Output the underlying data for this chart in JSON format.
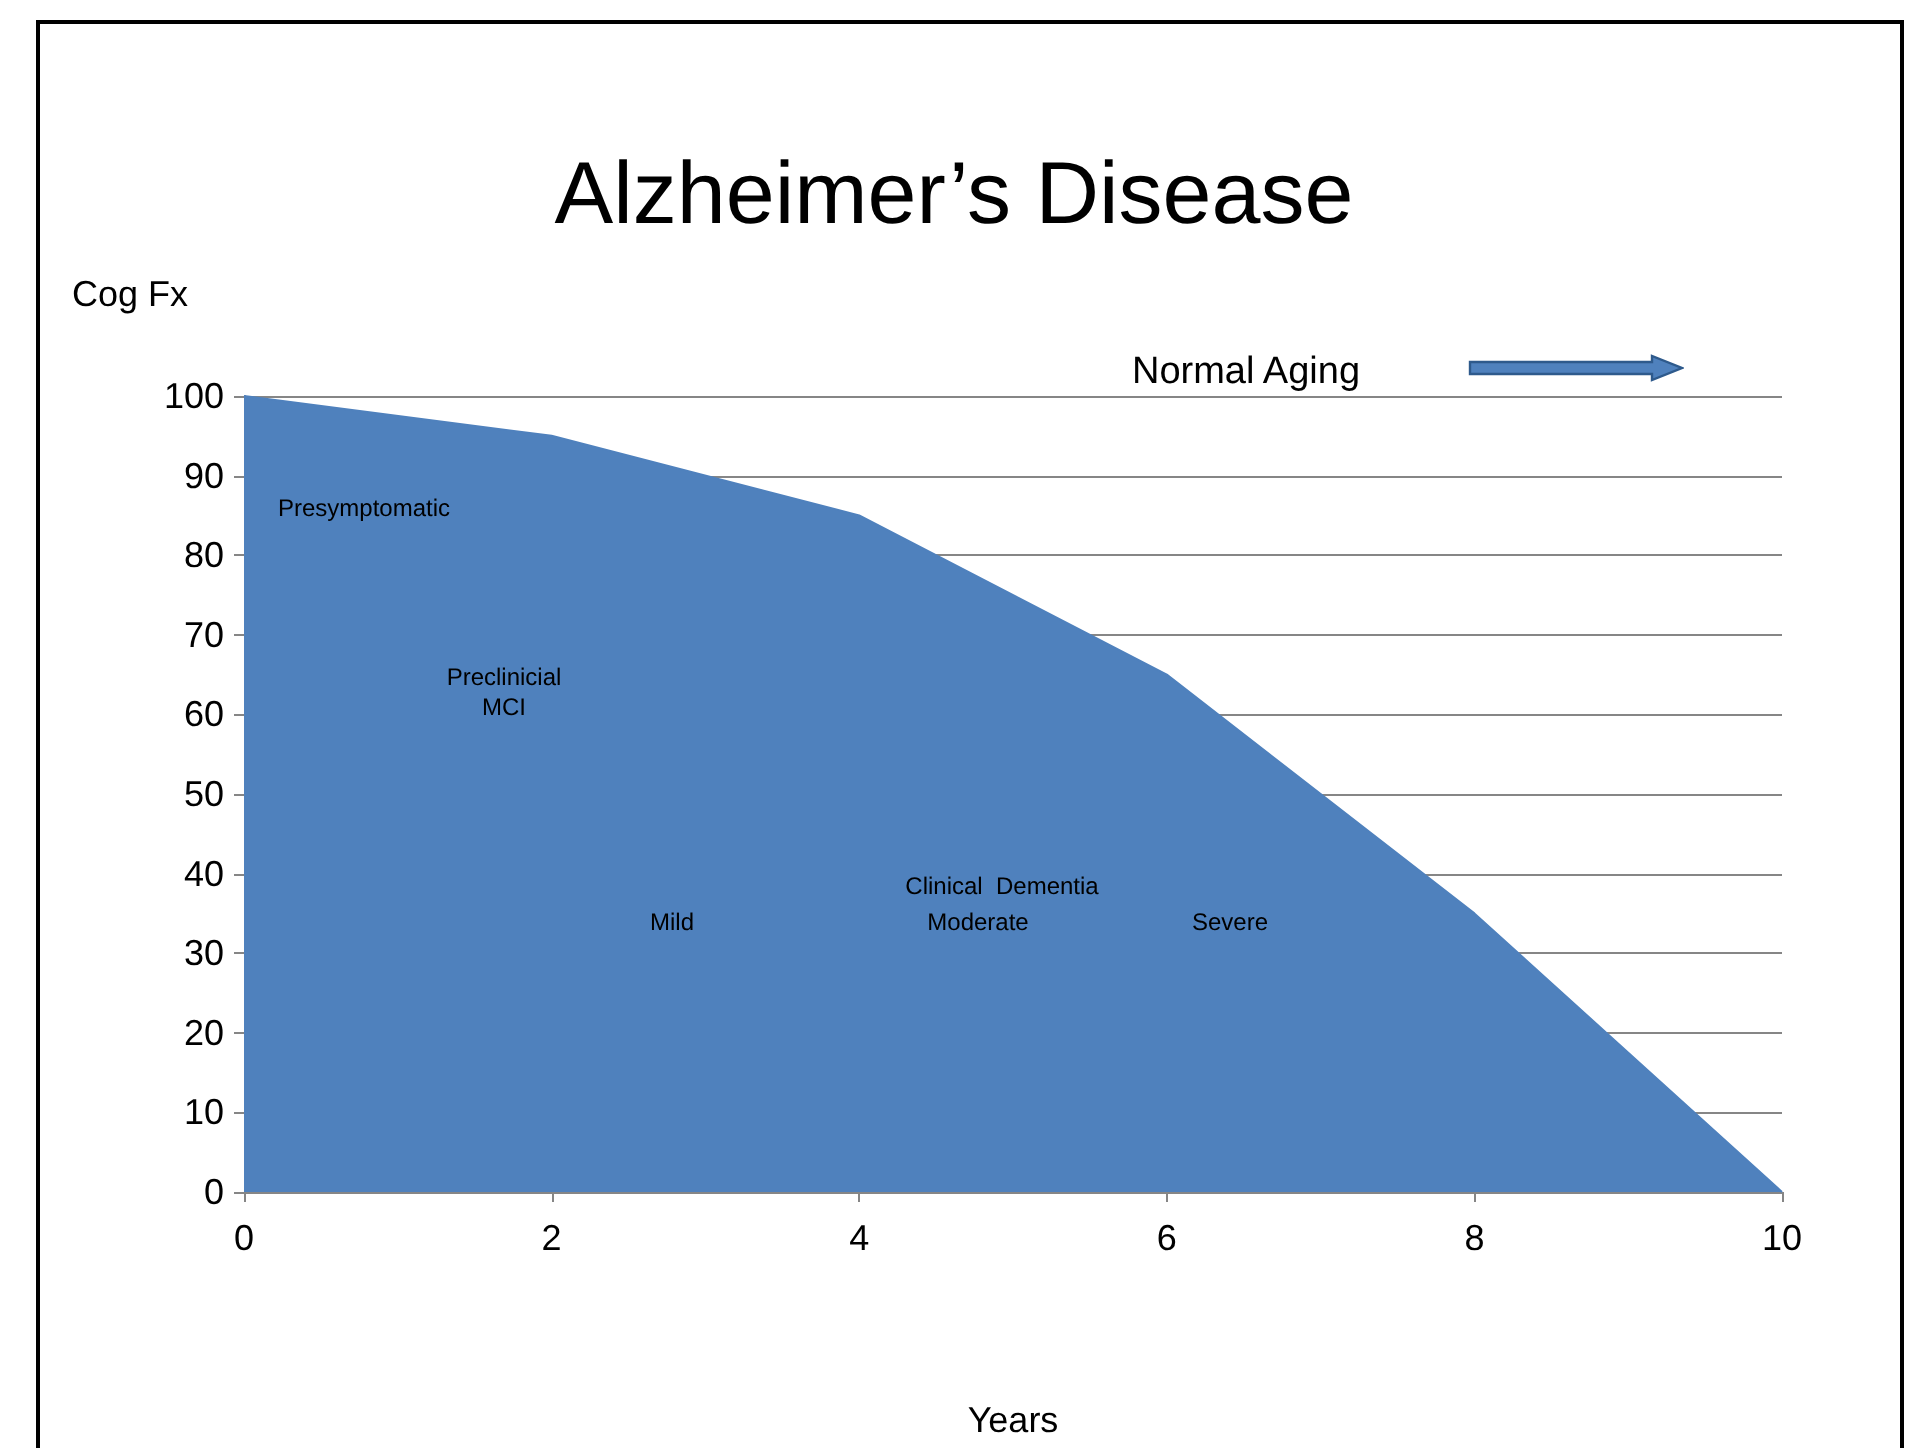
{
  "chart_data": {
    "type": "area",
    "title": "Alzheimer’s Disease",
    "xlabel": "Years",
    "ylabel": "Cog Fx",
    "x": [
      0,
      2,
      4,
      6,
      8,
      10
    ],
    "series": [
      {
        "color": "#4f81bd",
        "values": [
          100,
          95,
          85,
          65,
          35,
          0
        ]
      }
    ],
    "xlim": [
      0,
      10
    ],
    "xticks": [
      0,
      2,
      4,
      6,
      8,
      10
    ],
    "ylim": [
      0,
      100
    ],
    "yticks": [
      0,
      10,
      20,
      30,
      40,
      50,
      60,
      70,
      80,
      90,
      100
    ],
    "grid": "y",
    "marker": "none",
    "annotations": [
      "Normal Aging",
      "Presymptomatic",
      "Preclinicial\nMCI",
      "Mild",
      "Clinical  Dementia",
      "Moderate",
      "Severe"
    ]
  }
}
